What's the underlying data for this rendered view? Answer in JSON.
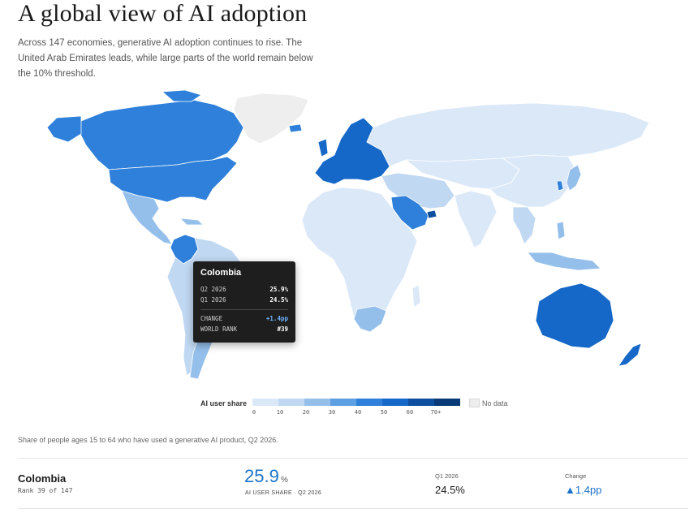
{
  "header": {
    "title": "A global view of AI adoption",
    "subtitle": "Across 147 economies, generative AI adoption continues to rise. The United Arab Emirates leads, while large parts of the world remain below the 10% threshold."
  },
  "colors": {
    "scale": [
      "#dbe8f8",
      "#c0d8f2",
      "#95bfeb",
      "#5d9fe3",
      "#2f80da",
      "#1668c8",
      "#0d4f9e",
      "#083a78"
    ],
    "no_data": "#eeeeee",
    "accent": "#1a73c8"
  },
  "map": {
    "regions": [
      {
        "name": "Canada",
        "share_bin": "20-30"
      },
      {
        "name": "United States",
        "share_bin": "20-30"
      },
      {
        "name": "Mexico",
        "share_bin": "10-20"
      },
      {
        "name": "Colombia",
        "share_bin": "20-30",
        "highlighted": true
      },
      {
        "name": "Brazil",
        "share_bin": "10-20"
      },
      {
        "name": "Argentina",
        "share_bin": "10-20"
      },
      {
        "name": "Greenland",
        "share_bin": "no-data"
      },
      {
        "name": "Europe",
        "share_bin": "20-40"
      },
      {
        "name": "Russia",
        "share_bin": "0-10"
      },
      {
        "name": "Africa",
        "share_bin": "0-10"
      },
      {
        "name": "South Africa",
        "share_bin": "10-20"
      },
      {
        "name": "Saudi Arabia",
        "share_bin": "20-30"
      },
      {
        "name": "United Arab Emirates",
        "share_bin": "50-60"
      },
      {
        "name": "China",
        "share_bin": "0-10"
      },
      {
        "name": "India",
        "share_bin": "0-10"
      },
      {
        "name": "Japan",
        "share_bin": "10-20"
      },
      {
        "name": "South Korea",
        "share_bin": "20-30"
      },
      {
        "name": "Australia",
        "share_bin": "30-40"
      },
      {
        "name": "New Zealand",
        "share_bin": "30-40"
      }
    ]
  },
  "tooltip": {
    "country": "Colombia",
    "rows": [
      {
        "label": "Q2 2026",
        "value": "25.9%"
      },
      {
        "label": "Q1 2026",
        "value": "24.5%"
      }
    ],
    "change_label": "CHANGE",
    "change_value": "+1.4pp",
    "rank_label": "WORLD RANK",
    "rank_value": "#39"
  },
  "legend": {
    "title": "AI user share",
    "ticks": [
      "0",
      "10",
      "20",
      "30",
      "40",
      "50",
      "60",
      "70+"
    ],
    "no_data_label": "No data"
  },
  "footnote": "Share of people ages 15 to 64 who have used a generative AI product, Q2 2026.",
  "summary": {
    "country": "Colombia",
    "rank_text": "Rank 39 of 147",
    "value": "25.9",
    "unit": "%",
    "value_label": "AI USER SHARE · Q2 2026",
    "q1_label": "Q1 2026",
    "q1_value": "24.5%",
    "change_label": "Change",
    "change_value": "▲1.4pp"
  }
}
